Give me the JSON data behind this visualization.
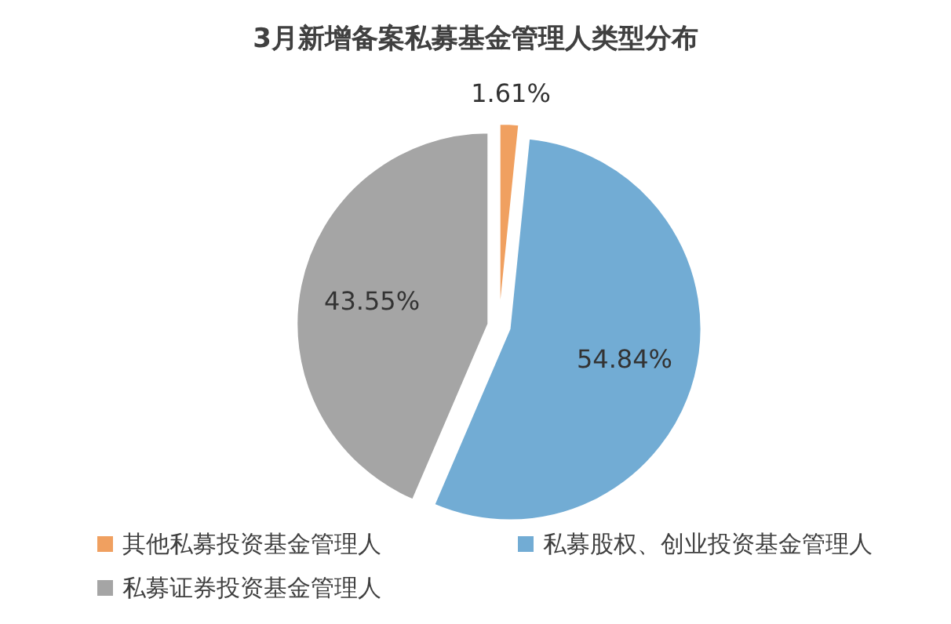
{
  "chart_data": {
    "type": "pie",
    "title": "3月新增备案私募基金管理人类型分布",
    "categories": [
      "其他私募投资基金管理人",
      "私募股权、创业投资基金管理人",
      "私募证券投资基金管理人"
    ],
    "values": [
      1.61,
      54.84,
      43.55
    ],
    "colors": [
      "#f0a060",
      "#72acd4",
      "#a5a5a5"
    ],
    "value_labels": [
      "1.61%",
      "54.84%",
      "43.55%"
    ],
    "legend": "bottom"
  }
}
